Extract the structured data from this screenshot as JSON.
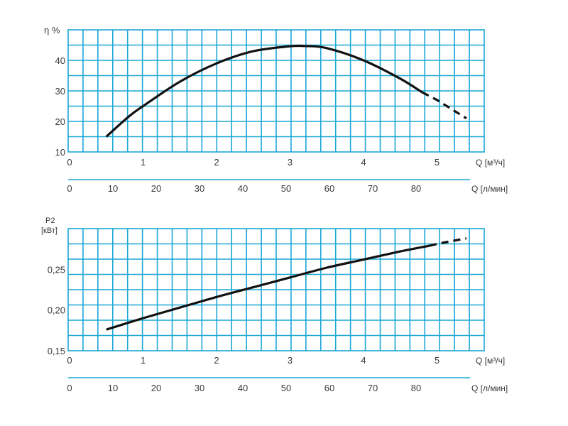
{
  "chart_data": [
    {
      "type": "line",
      "title": "",
      "ylabel": "η %",
      "ylim": [
        10,
        50
      ],
      "yticks": [
        "10",
        "20",
        "30",
        "40"
      ],
      "ytick_values": [
        10,
        20,
        30,
        40
      ],
      "xlim_m3h": [
        0,
        5.4
      ],
      "x_m3h_label": "Q [м³/ч]",
      "x_m3h_ticks": [
        "0",
        "1",
        "2",
        "3",
        "4",
        "5"
      ],
      "x_m3h_values": [
        0,
        1,
        2,
        3,
        4,
        5
      ],
      "x_lmin_label": "Q [л/мин]",
      "x_lmin_ticks": [
        "0",
        "10",
        "20",
        "30",
        "40",
        "50",
        "60",
        "70",
        "80"
      ],
      "x_lmin_values": [
        0,
        10,
        20,
        30,
        40,
        50,
        60,
        70,
        80
      ],
      "grid": true,
      "series": [
        {
          "name": "",
          "x": [
            0.5,
            0.8,
            1.0,
            1.5,
            2.0,
            2.5,
            3.0,
            3.2,
            3.5,
            4.0,
            4.5,
            4.8
          ],
          "y": [
            15,
            21.5,
            25,
            33,
            39,
            43,
            44.6,
            44.7,
            44,
            40,
            34,
            29.5
          ],
          "style": "solid"
        },
        {
          "name": "",
          "x": [
            4.8,
            5.0,
            5.2,
            5.4
          ],
          "y": [
            29.5,
            27,
            24,
            21
          ],
          "style": "dashed"
        }
      ]
    },
    {
      "type": "line",
      "title": "",
      "ylabel_line1": "P2",
      "ylabel_line2": "[кВт]",
      "ylim": [
        0.15,
        0.3
      ],
      "yticks": [
        "0,15",
        "0,20",
        "0,25"
      ],
      "ytick_values": [
        0.15,
        0.2,
        0.25
      ],
      "xlim_m3h": [
        0,
        5.4
      ],
      "x_m3h_label": "Q [м³/ч]",
      "x_m3h_ticks": [
        "0",
        "1",
        "2",
        "3",
        "4",
        "5"
      ],
      "x_m3h_values": [
        0,
        1,
        2,
        3,
        4,
        5
      ],
      "x_lmin_label": "Q [л/мин]",
      "x_lmin_ticks": [
        "0",
        "10",
        "20",
        "30",
        "40",
        "50",
        "60",
        "70",
        "80"
      ],
      "x_lmin_values": [
        0,
        10,
        20,
        30,
        40,
        50,
        60,
        70,
        80
      ],
      "grid": true,
      "series": [
        {
          "name": "",
          "x": [
            0.5,
            1.0,
            1.5,
            2.0,
            2.5,
            3.0,
            3.5,
            4.0,
            4.5,
            4.9
          ],
          "y": [
            0.176,
            0.19,
            0.203,
            0.216,
            0.228,
            0.24,
            0.252,
            0.262,
            0.272,
            0.279
          ],
          "style": "solid"
        },
        {
          "name": "",
          "x": [
            4.9,
            5.1,
            5.4
          ],
          "y": [
            0.279,
            0.283,
            0.288
          ],
          "style": "dashed"
        }
      ]
    }
  ],
  "colors": {
    "grid": "#1aa7d6",
    "curve": "#111111",
    "text": "#3a3a3a"
  }
}
